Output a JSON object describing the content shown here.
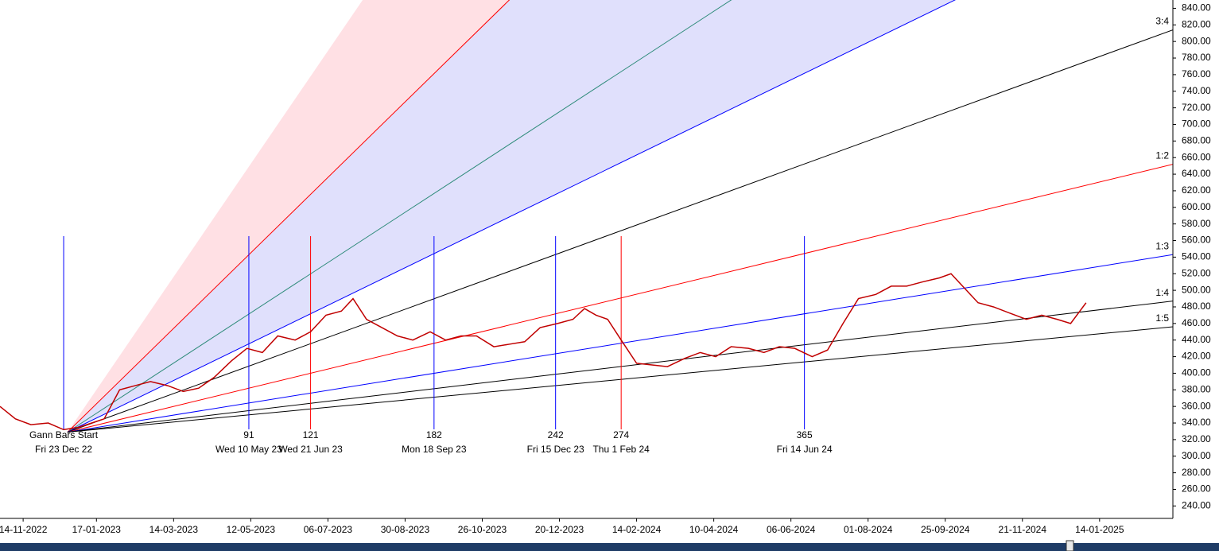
{
  "chart_data": {
    "type": "line",
    "xlim": [
      0,
      608
    ],
    "ylim": [
      225,
      850
    ],
    "xticks": [
      {
        "value": 12,
        "label": "14-11-2022"
      },
      {
        "value": 50,
        "label": "17-01-2023"
      },
      {
        "value": 90,
        "label": "14-03-2023"
      },
      {
        "value": 130,
        "label": "12-05-2023"
      },
      {
        "value": 170,
        "label": "06-07-2023"
      },
      {
        "value": 210,
        "label": "30-08-2023"
      },
      {
        "value": 250,
        "label": "26-10-2023"
      },
      {
        "value": 290,
        "label": "20-12-2023"
      },
      {
        "value": 330,
        "label": "14-02-2024"
      },
      {
        "value": 370,
        "label": "10-04-2024"
      },
      {
        "value": 410,
        "label": "06-06-2024"
      },
      {
        "value": 450,
        "label": "01-08-2024"
      },
      {
        "value": 490,
        "label": "25-09-2024"
      },
      {
        "value": 530,
        "label": "21-11-2024"
      },
      {
        "value": 570,
        "label": "14-01-2025"
      }
    ],
    "yticks": [
      {
        "value": 240,
        "label": "240.00"
      },
      {
        "value": 260,
        "label": "260.00"
      },
      {
        "value": 280,
        "label": "280.00"
      },
      {
        "value": 300,
        "label": "300.00"
      },
      {
        "value": 320,
        "label": "320.00"
      },
      {
        "value": 340,
        "label": "340.00"
      },
      {
        "value": 360,
        "label": "360.00"
      },
      {
        "value": 380,
        "label": "380.00"
      },
      {
        "value": 400,
        "label": "400.00"
      },
      {
        "value": 420,
        "label": "420.00"
      },
      {
        "value": 440,
        "label": "440.00"
      },
      {
        "value": 460,
        "label": "460.00"
      },
      {
        "value": 480,
        "label": "480.00"
      },
      {
        "value": 500,
        "label": "500.00"
      },
      {
        "value": 520,
        "label": "520.00"
      },
      {
        "value": 540,
        "label": "540.00"
      },
      {
        "value": 560,
        "label": "560.00"
      },
      {
        "value": 580,
        "label": "580.00"
      },
      {
        "value": 600,
        "label": "600.00"
      },
      {
        "value": 620,
        "label": "620.00"
      },
      {
        "value": 640,
        "label": "640.00"
      },
      {
        "value": 660,
        "label": "660.00"
      },
      {
        "value": 680,
        "label": "680.00"
      },
      {
        "value": 700,
        "label": "700.00"
      },
      {
        "value": 720,
        "label": "720.00"
      },
      {
        "value": 740,
        "label": "740.00"
      },
      {
        "value": 760,
        "label": "760.00"
      },
      {
        "value": 780,
        "label": "780.00"
      },
      {
        "value": 800,
        "label": "800.00"
      },
      {
        "value": 820,
        "label": "820.00"
      },
      {
        "value": 840,
        "label": "840.00"
      }
    ],
    "x": [
      0,
      8,
      16,
      25,
      33,
      41,
      54,
      62,
      70,
      78,
      87,
      95,
      103,
      111,
      120,
      128,
      136,
      144,
      153,
      161,
      169,
      177,
      183,
      190,
      198,
      206,
      214,
      223,
      231,
      239,
      247,
      256,
      264,
      272,
      280,
      289,
      297,
      303,
      309,
      315,
      322,
      330,
      338,
      346,
      355,
      363,
      371,
      379,
      388,
      396,
      404,
      412,
      421,
      429,
      437,
      445,
      454,
      462,
      470,
      478,
      487,
      493,
      499,
      507,
      515,
      524,
      532,
      540,
      548,
      555,
      563
    ],
    "series": [
      {
        "color": "#c00000",
        "values": [
          360,
          345,
          338,
          340,
          332,
          335,
          345,
          380,
          385,
          390,
          385,
          378,
          382,
          395,
          415,
          430,
          425,
          445,
          440,
          450,
          470,
          475,
          490,
          465,
          455,
          445,
          440,
          450,
          440,
          445,
          445,
          432,
          435,
          438,
          455,
          460,
          465,
          478,
          470,
          465,
          440,
          412,
          410,
          408,
          418,
          425,
          420,
          432,
          430,
          425,
          432,
          430,
          420,
          428,
          460,
          490,
          495,
          505,
          505,
          510,
          515,
          520,
          505,
          485,
          480,
          472,
          465,
          470,
          465,
          460,
          485
        ]
      }
    ],
    "fan": {
      "origin": [
        35,
        329
      ],
      "lines": [
        {
          "end": [
            188,
            850
          ],
          "fill": "#ffe0e4"
        },
        {
          "end": [
            264,
            850
          ],
          "color": "#ff0000",
          "fill": "#e0e0fc"
        },
        {
          "end": [
            379,
            850
          ],
          "color": "#2e8b7a",
          "fill": "#e0e0fc"
        },
        {
          "end": [
            495,
            850
          ],
          "color": "#0000ff"
        },
        {
          "end": [
            608,
            814
          ],
          "color": "#000000",
          "label": "3:4"
        },
        {
          "end": [
            608,
            652
          ],
          "color": "#ff0000",
          "label": "1:2"
        },
        {
          "end": [
            608,
            543
          ],
          "color": "#0000ff",
          "label": "1:3"
        },
        {
          "end": [
            608,
            487
          ],
          "color": "#000000",
          "label": "1:4"
        },
        {
          "end": [
            608,
            456
          ],
          "color": "#000000",
          "label": "1:5"
        }
      ]
    },
    "start": {
      "label": "Gann Bars Start",
      "date": "Fri 23 Dec 22",
      "x": 33,
      "color": "#0000ff"
    },
    "markers": [
      {
        "label": "91",
        "date": "Wed 10 May 23",
        "x": 129,
        "color": "#0000ff"
      },
      {
        "label": "121",
        "date": "Wed 21 Jun 23",
        "x": 161,
        "color": "#ff0000"
      },
      {
        "label": "182",
        "date": "Mon 18 Sep 23",
        "x": 225,
        "color": "#0000ff"
      },
      {
        "label": "242",
        "date": "Fri 15 Dec 23",
        "x": 288,
        "color": "#0000ff"
      },
      {
        "label": "274",
        "date": "Thu 1 Feb 24",
        "x": 322,
        "color": "#ff0000"
      },
      {
        "label": "365",
        "date": "Fri 14 Jun 24",
        "x": 417,
        "color": "#0000ff"
      }
    ]
  }
}
